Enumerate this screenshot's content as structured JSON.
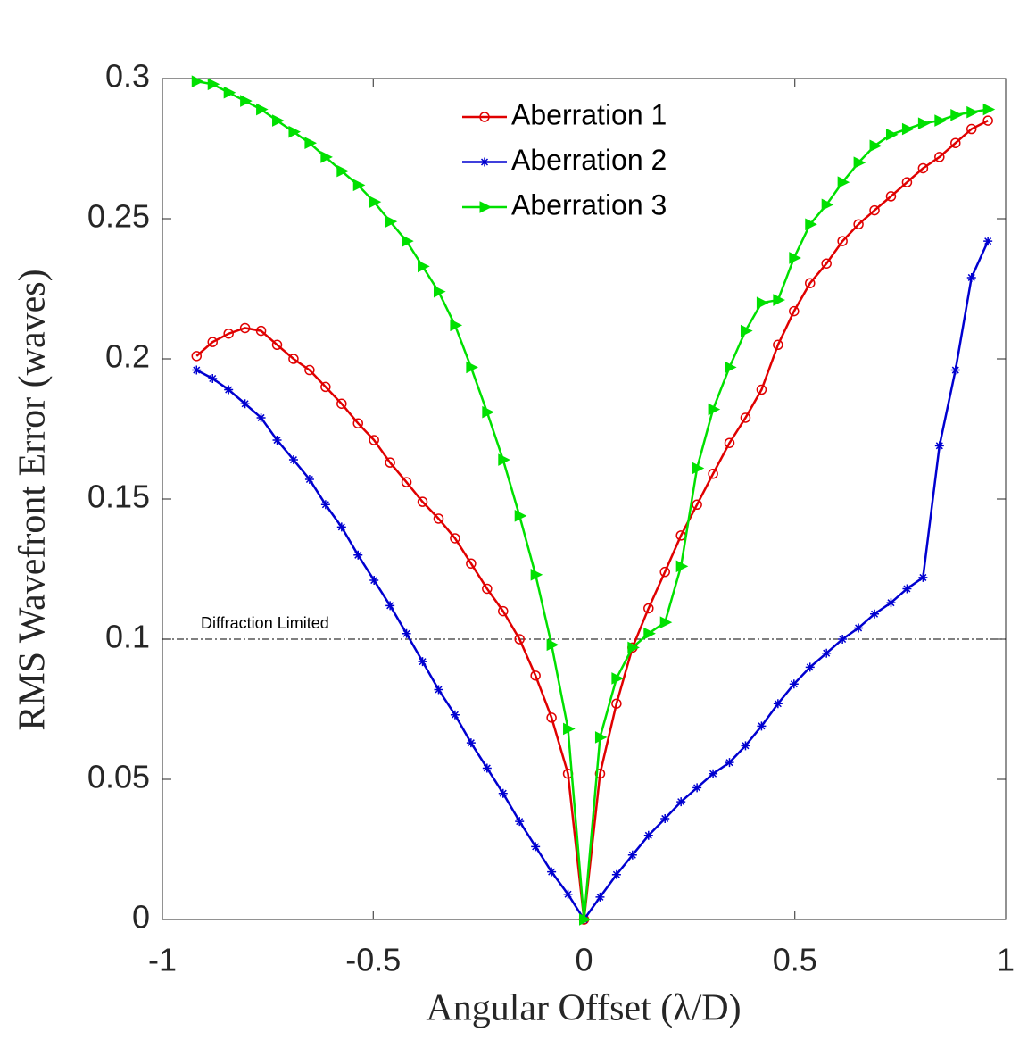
{
  "chart_data": {
    "type": "line",
    "xlabel": "Angular Offset (λ/D)",
    "ylabel": "RMS Wavefront Error (waves)",
    "x": [
      -0.919,
      -0.881,
      -0.843,
      -0.804,
      -0.766,
      -0.728,
      -0.689,
      -0.651,
      -0.613,
      -0.575,
      -0.536,
      -0.498,
      -0.46,
      -0.421,
      -0.383,
      -0.345,
      -0.306,
      -0.268,
      -0.23,
      -0.192,
      -0.153,
      -0.115,
      -0.077,
      -0.038,
      0,
      0.038,
      0.077,
      0.115,
      0.153,
      0.192,
      0.23,
      0.268,
      0.306,
      0.345,
      0.383,
      0.421,
      0.46,
      0.498,
      0.536,
      0.575,
      0.613,
      0.651,
      0.689,
      0.728,
      0.766,
      0.804,
      0.843,
      0.881,
      0.919,
      0.958
    ],
    "series": [
      {
        "name": "Aberration 1",
        "color": "#e00000",
        "marker": "circle",
        "values": [
          0.201,
          0.206,
          0.209,
          0.211,
          0.21,
          0.205,
          0.2,
          0.196,
          0.19,
          0.184,
          0.177,
          0.171,
          0.163,
          0.156,
          0.149,
          0.143,
          0.136,
          0.127,
          0.118,
          0.11,
          0.1,
          0.087,
          0.072,
          0.052,
          0,
          0.052,
          0.077,
          0.097,
          0.111,
          0.124,
          0.137,
          0.148,
          0.159,
          0.17,
          0.179,
          0.189,
          0.205,
          0.217,
          0.227,
          0.234,
          0.242,
          0.248,
          0.253,
          0.258,
          0.263,
          0.268,
          0.272,
          0.277,
          0.282,
          0.285
        ]
      },
      {
        "name": "Aberration 2",
        "color": "#0000d0",
        "marker": "asterisk",
        "values": [
          0.196,
          0.193,
          0.189,
          0.184,
          0.179,
          0.171,
          0.164,
          0.157,
          0.148,
          0.14,
          0.13,
          0.121,
          0.112,
          0.102,
          0.092,
          0.082,
          0.073,
          0.063,
          0.054,
          0.045,
          0.035,
          0.026,
          0.017,
          0.009,
          0,
          0.008,
          0.016,
          0.023,
          0.03,
          0.036,
          0.042,
          0.047,
          0.052,
          0.056,
          0.062,
          0.069,
          0.077,
          0.084,
          0.09,
          0.095,
          0.1,
          0.104,
          0.109,
          0.113,
          0.118,
          0.122,
          0.169,
          0.196,
          0.229,
          0.242
        ]
      },
      {
        "name": "Aberration 3",
        "color": "#00e000",
        "marker": "triangle-right",
        "values": [
          0.299,
          0.298,
          0.295,
          0.292,
          0.289,
          0.285,
          0.281,
          0.277,
          0.272,
          0.267,
          0.262,
          0.256,
          0.249,
          0.242,
          0.233,
          0.224,
          0.212,
          0.197,
          0.181,
          0.164,
          0.144,
          0.123,
          0.098,
          0.068,
          0,
          0.065,
          0.086,
          0.097,
          0.102,
          0.106,
          0.126,
          0.161,
          0.182,
          0.197,
          0.21,
          0.22,
          0.221,
          0.236,
          0.248,
          0.255,
          0.263,
          0.27,
          0.276,
          0.28,
          0.282,
          0.284,
          0.285,
          0.287,
          0.288,
          0.289
        ]
      }
    ],
    "xlim": [
      -1,
      1
    ],
    "xticks": [
      -1,
      -0.5,
      0,
      0.5,
      1
    ],
    "ylim": [
      0,
      0.3
    ],
    "yticks": [
      0,
      0.05,
      0.1,
      0.15,
      0.2,
      0.25,
      0.3
    ],
    "legend": "top-center",
    "annotations": [
      {
        "text": "Diffraction Limited",
        "y": 0.1,
        "color": "#000000"
      }
    ]
  }
}
